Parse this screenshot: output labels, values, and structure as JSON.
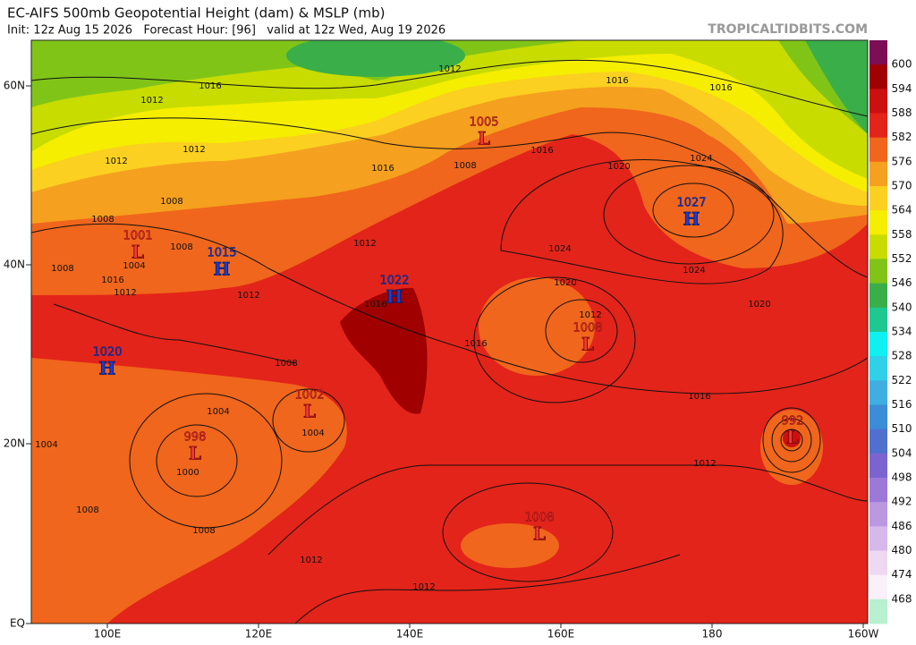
{
  "header": {
    "title": "EC-AIFS 500mb Geopotential Height (dam) & MSLP (mb)",
    "subtitle": "Init: 12z Aug 15 2026   Forecast Hour: [96]   valid at 12z Wed, Aug 19 2026",
    "source": "TROPICALTIDBITS.COM"
  },
  "map": {
    "lat_labels": [
      "60N",
      "40N",
      "20N",
      "EQ"
    ],
    "lon_labels": [
      "100E",
      "120E",
      "140E",
      "160E",
      "180",
      "160W"
    ],
    "colorbar": {
      "levels": [
        600,
        594,
        588,
        582,
        576,
        570,
        564,
        558,
        552,
        546,
        540,
        534,
        528,
        522,
        516,
        510,
        504,
        498,
        492,
        486,
        480,
        474,
        468
      ],
      "colors": [
        "#7d0e55",
        "#a00000",
        "#cc1010",
        "#e3241a",
        "#f0661c",
        "#f5a01e",
        "#fbd020",
        "#f5ee00",
        "#c8dc00",
        "#80c418",
        "#3aae48",
        "#1ec890",
        "#10f0f0",
        "#30d0e8",
        "#40aee0",
        "#3c8cd8",
        "#5070d0",
        "#7c64d0",
        "#9c78d8",
        "#bc98e0",
        "#d6b8ea",
        "#eed8f2",
        "#faf0fa",
        "#b8f0d0"
      ]
    },
    "centers": [
      {
        "kind": "L",
        "pressure": 1005
      },
      {
        "kind": "H",
        "pressure": 1027
      },
      {
        "kind": "H",
        "pressure": 1022
      },
      {
        "kind": "H",
        "pressure": 1015
      },
      {
        "kind": "L",
        "pressure": 1001
      },
      {
        "kind": "H",
        "pressure": 1020
      },
      {
        "kind": "L",
        "pressure": 1002
      },
      {
        "kind": "L",
        "pressure": 998
      },
      {
        "kind": "L",
        "pressure": 1008
      },
      {
        "kind": "L",
        "pressure": 1008
      },
      {
        "kind": "L",
        "pressure": 992
      }
    ],
    "isobar_labels": [
      1012,
      1016,
      1012,
      1016,
      1016,
      1012,
      1012,
      1016,
      1008,
      1016,
      1020,
      1024,
      1008,
      1008,
      1008,
      1004,
      1008,
      1016,
      1012,
      1012,
      1012,
      1024,
      1024,
      1020,
      1016,
      1012,
      1020,
      1016,
      1008,
      1004,
      1004,
      1000,
      1004,
      1008,
      1008,
      1012,
      1012,
      1016,
      1012
    ]
  }
}
